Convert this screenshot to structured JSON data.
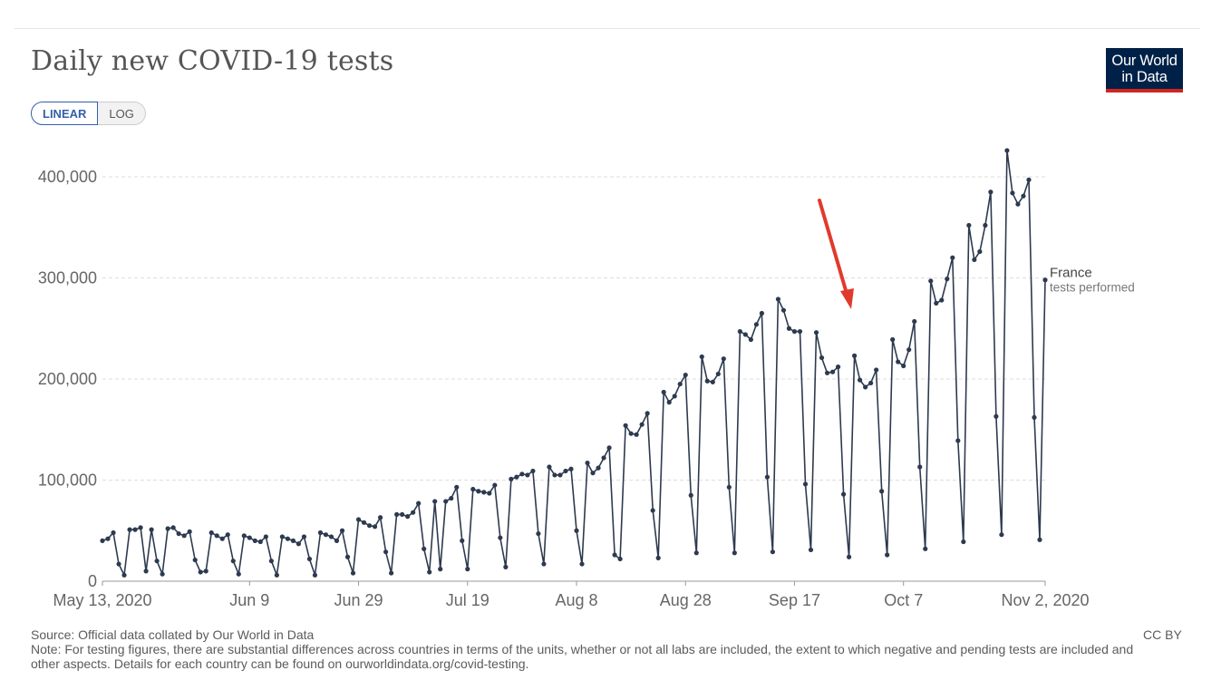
{
  "header": {
    "title": "Daily new COVID-19 tests",
    "logo_line1": "Our World",
    "logo_line2": "in Data"
  },
  "scale_toggle": {
    "linear_label": "LINEAR",
    "log_label": "LOG",
    "selected": "LINEAR"
  },
  "footer": {
    "source": "Source: Official data collated by Our World in Data",
    "note": "Note: For testing figures, there are substantial differences across countries in terms of the units, whether or not all labs are included, the extent to which negative and pending tests are included and other aspects. Details for each country can be found on ourworldindata.org/covid-testing.",
    "license": "CC BY"
  },
  "colors": {
    "line": "#2d3a4f",
    "grid": "#dddddd",
    "axis_text": "#666666",
    "arrow": "#e03a2d",
    "logo_bg": "#002147",
    "logo_accent": "#ce261e"
  },
  "chart_data": {
    "type": "line",
    "title": "Daily new COVID-19 tests",
    "xlabel": "",
    "ylabel": "",
    "ylim": [
      0,
      400000
    ],
    "yticks": [
      0,
      100000,
      200000,
      300000,
      400000
    ],
    "ytick_labels": [
      "0",
      "100,000",
      "200,000",
      "300,000",
      "400,000"
    ],
    "x_start": "May 13, 2020",
    "x_end": "Nov 2, 2020",
    "x_ticks": [
      {
        "day": 0,
        "label": "May 13, 2020"
      },
      {
        "day": 27,
        "label": "Jun 9"
      },
      {
        "day": 47,
        "label": "Jun 29"
      },
      {
        "day": 67,
        "label": "Jul 19"
      },
      {
        "day": 87,
        "label": "Aug 8"
      },
      {
        "day": 107,
        "label": "Aug 28"
      },
      {
        "day": 127,
        "label": "Sep 17"
      },
      {
        "day": 147,
        "label": "Oct 7"
      },
      {
        "day": 173,
        "label": "Nov 2, 2020"
      }
    ],
    "grid": "horizontal-dashed",
    "series": [
      {
        "name": "France",
        "sublabel": "tests performed",
        "values": [
          40000,
          42000,
          48000,
          17000,
          6000,
          51000,
          51000,
          53000,
          10000,
          51000,
          20000,
          7000,
          52000,
          53000,
          47000,
          45000,
          49000,
          21000,
          9000,
          10000,
          48000,
          45000,
          42000,
          46000,
          20000,
          7000,
          45000,
          43000,
          40000,
          39000,
          44000,
          20000,
          6000,
          44000,
          42000,
          40000,
          37000,
          44000,
          22000,
          6000,
          48000,
          46000,
          44000,
          40000,
          50000,
          24000,
          8000,
          61000,
          58000,
          55000,
          54000,
          63000,
          29000,
          8000,
          66000,
          66000,
          64000,
          68000,
          77000,
          32000,
          9000,
          79000,
          12000,
          79000,
          82000,
          93000,
          40000,
          12000,
          91000,
          89000,
          88000,
          87000,
          95000,
          43000,
          14000,
          101000,
          103000,
          106000,
          105000,
          109000,
          47000,
          17000,
          113000,
          105000,
          105000,
          109000,
          111000,
          50000,
          17000,
          117000,
          107000,
          112000,
          122000,
          132000,
          26000,
          22000,
          154000,
          146000,
          145000,
          155000,
          166000,
          70000,
          23000,
          187000,
          177000,
          183000,
          195000,
          204000,
          85000,
          28000,
          222000,
          198000,
          197000,
          205000,
          220000,
          93000,
          28000,
          247000,
          244000,
          239000,
          254000,
          265000,
          103000,
          29000,
          279000,
          268000,
          250000,
          247000,
          247000,
          96000,
          31000,
          246000,
          221000,
          206000,
          207000,
          212000,
          86000,
          24000,
          223000,
          199000,
          192000,
          196000,
          209000,
          89000,
          26000,
          239000,
          217000,
          213000,
          229000,
          257000,
          113000,
          32000,
          297000,
          275000,
          278000,
          299000,
          320000,
          139000,
          39000,
          352000,
          318000,
          326000,
          352000,
          385000,
          163000,
          46000,
          426000,
          384000,
          373000,
          381000,
          397000,
          162000,
          41000,
          298000
        ]
      }
    ],
    "annotations": [
      {
        "type": "arrow",
        "color": "red",
        "points_to_day": 136
      }
    ],
    "legend": "end-of-line label"
  }
}
